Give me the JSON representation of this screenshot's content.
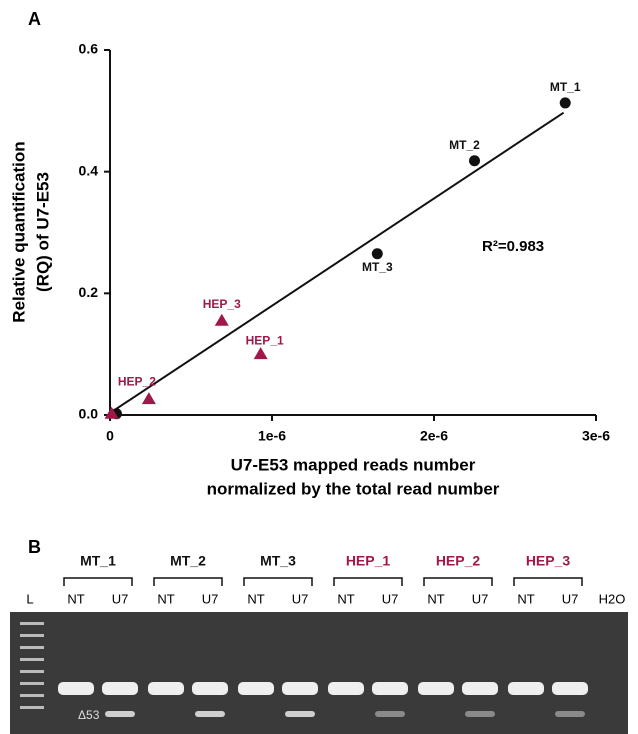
{
  "chart_data": {
    "type": "scatter",
    "panel_label": "A",
    "xlabel": [
      "U7-E53 mapped reads number",
      "normalized by the total read number"
    ],
    "ylabel": [
      "Relative quantification",
      "(RQ) of U7-E53"
    ],
    "xlim": [
      0,
      3e-06
    ],
    "ylim": [
      0,
      0.6
    ],
    "xticks": [
      0,
      {
        "value": 1e-06,
        "label": "1e-6"
      },
      {
        "value": 2e-06,
        "label": "2e-6"
      },
      {
        "value": 3e-06,
        "label": "3e-6"
      }
    ],
    "yticks": [
      {
        "value": 0,
        "label": "0.0"
      },
      0.2,
      0.4,
      0.6
    ],
    "series": [
      {
        "marker": "circle",
        "color": "#111111",
        "x": [
          2.81e-06,
          2.25e-06,
          1.65e-06,
          4e-08
        ],
        "values": [
          0.513,
          0.418,
          0.265,
          0.002
        ],
        "labels": [
          "MT_1",
          "MT_2",
          "MT_3",
          null
        ]
      },
      {
        "marker": "triangle",
        "color": "#a0184a",
        "x": [
          9.3e-07,
          6.9e-07,
          2.4e-07,
          1e-08
        ],
        "values": [
          0.1,
          0.155,
          0.026,
          0.002
        ],
        "labels": [
          "HEP_1",
          "HEP_3",
          "HEP_2",
          null
        ]
      }
    ],
    "trendline": {
      "x": [
        1e-08,
        2.8e-06
      ],
      "values": [
        0.005,
        0.497
      ]
    },
    "annotation": "R²=0.983"
  },
  "gel": {
    "panel_label": "B",
    "groups": [
      {
        "label": "MT_1",
        "color": "#111111"
      },
      {
        "label": "MT_2",
        "color": "#111111"
      },
      {
        "label": "MT_3",
        "color": "#111111"
      },
      {
        "label": "HEP_1",
        "color": "#a0184a"
      },
      {
        "label": "HEP_2",
        "color": "#a0184a"
      },
      {
        "label": "HEP_3",
        "color": "#a0184a"
      }
    ],
    "lanes": [
      "L",
      "NT",
      "U7",
      "NT",
      "U7",
      "NT",
      "U7",
      "NT",
      "U7",
      "NT",
      "U7",
      "NT",
      "U7",
      "H2O"
    ],
    "band_label": "Δ53"
  }
}
